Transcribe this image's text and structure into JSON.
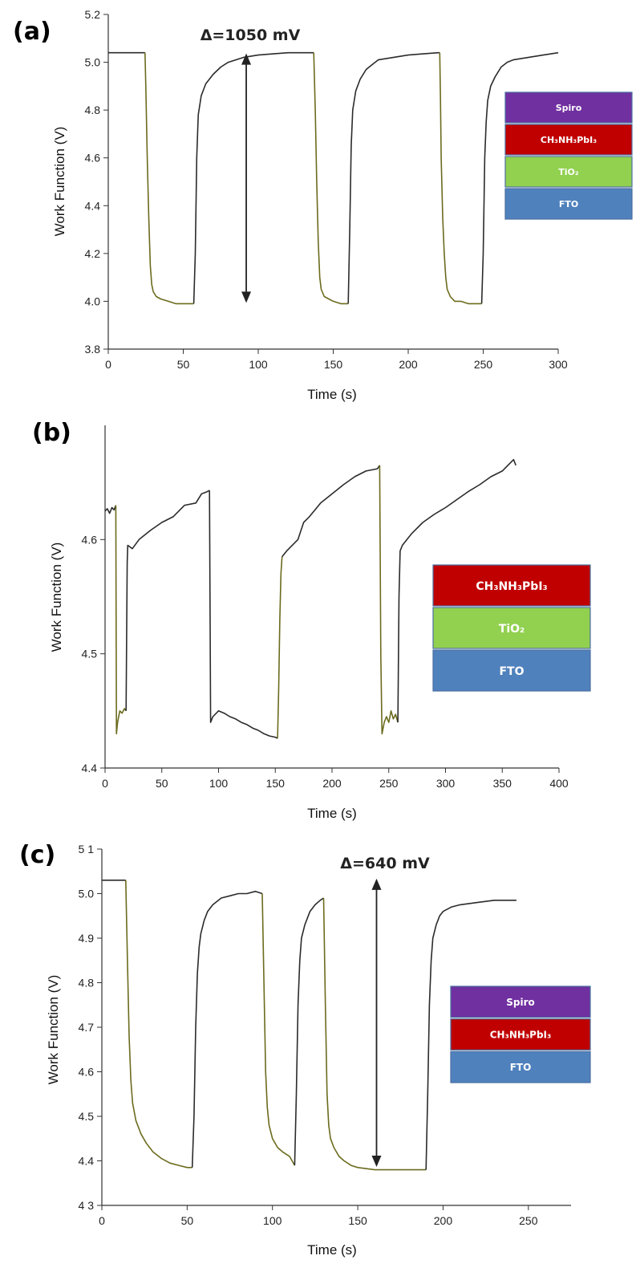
{
  "panels": [
    {
      "label": "(a)",
      "annotation": "Δ=1050 mV",
      "layers": [
        {
          "name": "Spiro",
          "color": "#7030a0"
        },
        {
          "name": "CH₃NH₃PbI₃",
          "color": "#c00000"
        },
        {
          "name": "TiO₂",
          "color": "#92d050"
        },
        {
          "name": "FTO",
          "color": "#4f81bd"
        }
      ]
    },
    {
      "label": "(b)",
      "annotation": "",
      "layers": [
        {
          "name": "CH₃NH₃PbI₃",
          "color": "#c00000"
        },
        {
          "name": "TiO₂",
          "color": "#92d050"
        },
        {
          "name": "FTO",
          "color": "#4f81bd"
        }
      ]
    },
    {
      "label": "(c)",
      "annotation": "Δ=640 mV",
      "layers": [
        {
          "name": "Spiro",
          "color": "#7030a0"
        },
        {
          "name": "CH₃NH₃PbI₃",
          "color": "#c00000"
        },
        {
          "name": "FTO",
          "color": "#4f81bd"
        }
      ]
    }
  ],
  "chart_data": [
    {
      "type": "line",
      "xlabel": "Time (s)",
      "ylabel": "Work Function (V)",
      "xlim": [
        0,
        300
      ],
      "ylim": [
        3.8,
        5.2
      ],
      "xticks": [
        "0",
        "50",
        "100",
        "150",
        "200",
        "250",
        "300"
      ],
      "yticks": [
        "3.8",
        "4.0",
        "4.2",
        "4.4",
        "4.6",
        "4.8",
        "5.0",
        "5.2"
      ],
      "colors": {
        "dark": "#2b2b2b",
        "light": "#6b6b1e"
      },
      "arrow": {
        "x": 92,
        "y1": 4.0,
        "y2": 5.03
      },
      "segments": [
        {
          "tone": "dark",
          "x": [
            0,
            24.5
          ],
          "y": [
            5.04,
            5.04
          ]
        },
        {
          "tone": "light",
          "x": [
            24.5,
            25,
            26,
            27,
            28,
            29,
            30,
            32,
            35,
            40,
            45,
            50,
            55,
            57
          ],
          "y": [
            5.04,
            4.9,
            4.6,
            4.35,
            4.15,
            4.07,
            4.04,
            4.02,
            4.01,
            4.0,
            3.99,
            3.99,
            3.99,
            3.99
          ]
        },
        {
          "tone": "dark",
          "x": [
            57,
            58,
            59,
            60,
            62,
            65,
            70,
            75,
            80,
            90,
            100,
            110,
            120,
            130,
            137
          ],
          "y": [
            3.99,
            4.2,
            4.6,
            4.78,
            4.86,
            4.91,
            4.95,
            4.98,
            5.0,
            5.02,
            5.03,
            5.035,
            5.04,
            5.04,
            5.04
          ]
        },
        {
          "tone": "light",
          "x": [
            137,
            138,
            139,
            140,
            141,
            142,
            144,
            147,
            150,
            155,
            160
          ],
          "y": [
            5.04,
            4.8,
            4.5,
            4.25,
            4.1,
            4.05,
            4.02,
            4.01,
            4.0,
            3.99,
            3.99
          ]
        },
        {
          "tone": "dark",
          "x": [
            160,
            161,
            162,
            163,
            165,
            168,
            172,
            176,
            180,
            190,
            200,
            210,
            220,
            221
          ],
          "y": [
            3.99,
            4.3,
            4.65,
            4.8,
            4.88,
            4.93,
            4.97,
            4.99,
            5.01,
            5.02,
            5.03,
            5.035,
            5.04,
            5.04
          ]
        },
        {
          "tone": "light",
          "x": [
            221,
            221.5,
            222,
            223,
            224,
            225,
            226,
            228,
            231,
            235,
            240,
            245,
            249
          ],
          "y": [
            5.04,
            4.85,
            4.6,
            4.35,
            4.2,
            4.1,
            4.05,
            4.02,
            4.0,
            4.0,
            3.99,
            3.99,
            3.99
          ]
        },
        {
          "tone": "dark",
          "x": [
            249,
            250,
            251,
            252,
            253,
            255,
            258,
            262,
            266,
            270,
            280,
            290,
            300
          ],
          "y": [
            3.99,
            4.2,
            4.6,
            4.75,
            4.84,
            4.9,
            4.94,
            4.98,
            5.0,
            5.01,
            5.02,
            5.03,
            5.04
          ]
        }
      ]
    },
    {
      "type": "line",
      "xlabel": "Time (s)",
      "ylabel": "Work Function (V)",
      "xlim": [
        0,
        400
      ],
      "ylim": [
        4.4,
        4.7
      ],
      "xticks": [
        "0",
        "50",
        "100",
        "150",
        "200",
        "250",
        "300",
        "350",
        "400"
      ],
      "yticks": [
        "4.4",
        "4.5",
        "4.6"
      ],
      "colors": {
        "dark": "#2b2b2b",
        "light": "#6b6b1e"
      },
      "segments": [
        {
          "tone": "dark",
          "x": [
            0,
            2,
            4,
            6,
            8,
            9.5
          ],
          "y": [
            4.625,
            4.627,
            4.623,
            4.628,
            4.626,
            4.63
          ]
        },
        {
          "tone": "light",
          "x": [
            9.5,
            10,
            11,
            13,
            15,
            17,
            18.5
          ],
          "y": [
            4.63,
            4.43,
            4.44,
            4.45,
            4.448,
            4.452,
            4.45
          ]
        },
        {
          "tone": "dark",
          "x": [
            18.5,
            19.5,
            20,
            24,
            30,
            40,
            50,
            60,
            70,
            80,
            85,
            90,
            92
          ],
          "y": [
            4.45,
            4.58,
            4.595,
            4.592,
            4.6,
            4.608,
            4.615,
            4.62,
            4.63,
            4.632,
            4.64,
            4.642,
            4.643
          ]
        },
        {
          "tone": "dark",
          "x": [
            92,
            93,
            95,
            100,
            105,
            110,
            115,
            120,
            125,
            130,
            135,
            140,
            145,
            150,
            152
          ],
          "y": [
            4.643,
            4.44,
            4.445,
            4.45,
            4.448,
            4.445,
            4.443,
            4.44,
            4.438,
            4.435,
            4.433,
            4.43,
            4.428,
            4.427,
            4.426
          ]
        },
        {
          "tone": "light",
          "x": [
            152,
            153,
            154,
            155,
            156
          ],
          "y": [
            4.426,
            4.47,
            4.53,
            4.57,
            4.585
          ]
        },
        {
          "tone": "dark",
          "x": [
            156,
            160,
            170,
            175,
            180,
            190,
            200,
            210,
            220,
            230,
            240,
            242
          ],
          "y": [
            4.585,
            4.59,
            4.6,
            4.615,
            4.62,
            4.632,
            4.64,
            4.648,
            4.655,
            4.66,
            4.662,
            4.665
          ]
        },
        {
          "tone": "light",
          "x": [
            242,
            243,
            244,
            246,
            248,
            250,
            252,
            254,
            256,
            258
          ],
          "y": [
            4.665,
            4.5,
            4.43,
            4.44,
            4.445,
            4.44,
            4.45,
            4.443,
            4.447,
            4.44
          ]
        },
        {
          "tone": "dark",
          "x": [
            258,
            259,
            260,
            262,
            266,
            270,
            280,
            290,
            300,
            310,
            320,
            330,
            340,
            350,
            355,
            360,
            362
          ],
          "y": [
            4.44,
            4.55,
            4.59,
            4.595,
            4.6,
            4.605,
            4.615,
            4.622,
            4.628,
            4.635,
            4.642,
            4.648,
            4.655,
            4.66,
            4.665,
            4.67,
            4.665
          ]
        }
      ]
    },
    {
      "type": "line",
      "xlabel": "Time (s)",
      "ylabel": "Work Function (V)",
      "xlim": [
        0,
        275
      ],
      "ylim": [
        4.3,
        5.1
      ],
      "xticks": [
        "0",
        "50",
        "100",
        "150",
        "200",
        "250"
      ],
      "xtickvals": [
        0,
        50,
        100,
        150,
        200,
        250
      ],
      "yticks": [
        "4 3",
        "4.4",
        "4.5",
        "4.6",
        "4.7",
        "4.8",
        "4.9",
        "5.0",
        "5 1"
      ],
      "colors": {
        "dark": "#2b2b2b",
        "light": "#6b6b1e"
      },
      "arrow": {
        "x": 161,
        "y1": 4.39,
        "y2": 5.03
      },
      "segments": [
        {
          "tone": "dark",
          "x": [
            0,
            14
          ],
          "y": [
            5.03,
            5.03
          ]
        },
        {
          "tone": "light",
          "x": [
            14,
            15,
            16,
            17,
            18,
            20,
            23,
            26,
            30,
            35,
            40,
            45,
            50,
            53
          ],
          "y": [
            5.03,
            4.85,
            4.68,
            4.58,
            4.53,
            4.49,
            4.46,
            4.44,
            4.42,
            4.405,
            4.395,
            4.39,
            4.385,
            4.385
          ]
        },
        {
          "tone": "dark",
          "x": [
            53,
            54,
            55,
            56,
            57,
            58,
            60,
            62,
            65,
            70,
            75,
            80,
            85,
            90,
            94
          ],
          "y": [
            4.385,
            4.5,
            4.7,
            4.82,
            4.88,
            4.91,
            4.94,
            4.96,
            4.975,
            4.99,
            4.995,
            5.0,
            5.0,
            5.005,
            5.0
          ]
        },
        {
          "tone": "light",
          "x": [
            94,
            95,
            96,
            97,
            98,
            100,
            103,
            106,
            110,
            113
          ],
          "y": [
            5.0,
            4.8,
            4.6,
            4.52,
            4.48,
            4.45,
            4.43,
            4.42,
            4.41,
            4.39
          ]
        },
        {
          "tone": "dark",
          "x": [
            113,
            114,
            115,
            116,
            117,
            119,
            122,
            125,
            128,
            130
          ],
          "y": [
            4.39,
            4.55,
            4.75,
            4.85,
            4.9,
            4.93,
            4.96,
            4.975,
            4.985,
            4.99
          ]
        },
        {
          "tone": "light",
          "x": [
            130,
            131,
            132,
            133,
            134,
            136,
            139,
            142,
            146,
            150,
            160,
            170,
            180,
            190
          ],
          "y": [
            4.99,
            4.75,
            4.55,
            4.48,
            4.45,
            4.43,
            4.41,
            4.4,
            4.39,
            4.385,
            4.38,
            4.38,
            4.38,
            4.38
          ]
        },
        {
          "tone": "dark",
          "x": [
            190,
            191,
            192,
            193,
            194,
            196,
            198,
            200,
            205,
            210,
            220,
            230,
            243
          ],
          "y": [
            4.38,
            4.55,
            4.75,
            4.85,
            4.9,
            4.93,
            4.95,
            4.96,
            4.97,
            4.975,
            4.98,
            4.985,
            4.985
          ]
        }
      ]
    }
  ]
}
